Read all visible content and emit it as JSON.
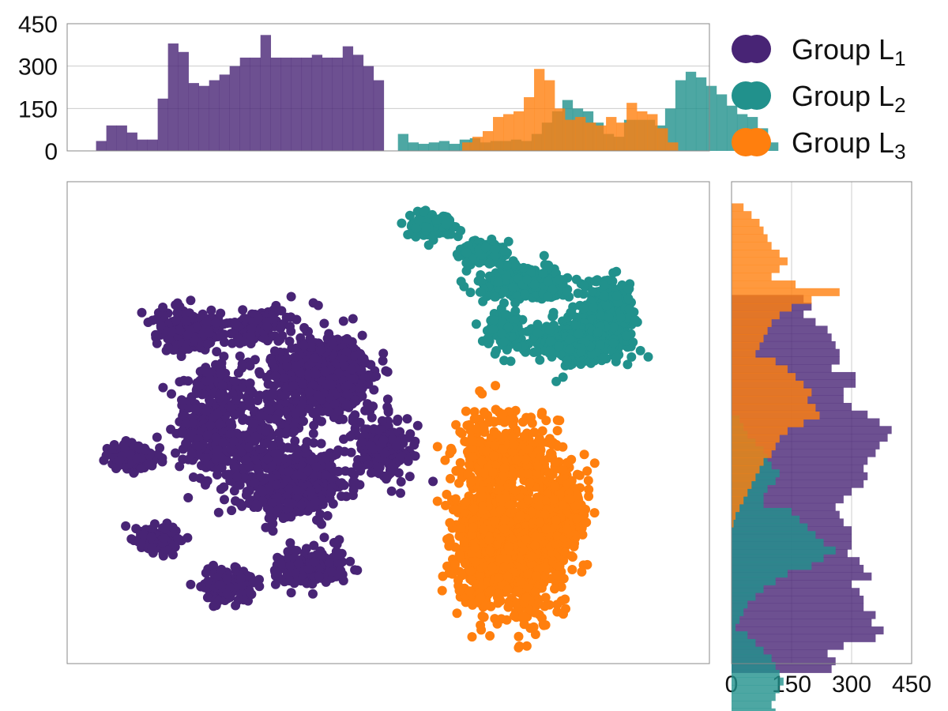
{
  "chart_data": {
    "type": "scatter",
    "title": "",
    "xlabel": "",
    "ylabel": "",
    "legend": {
      "placement": "top-right",
      "entries": [
        {
          "prefix": "Group L",
          "subscript": "1"
        },
        {
          "prefix": "Group L",
          "subscript": "2"
        },
        {
          "prefix": "Group L",
          "subscript": "3"
        }
      ]
    },
    "colors": {
      "group1": "#482475",
      "group2": "#21918c",
      "group3": "#ff7f0e",
      "grid": "#cccccc",
      "frame": "#888888"
    },
    "scatter": {
      "xlim": [
        0,
        100
      ],
      "ylim": [
        0,
        100
      ],
      "clusters": [
        {
          "group": 0,
          "cx": 40,
          "cy": 40,
          "rx": 6,
          "ry": 7,
          "n": 700
        },
        {
          "group": 0,
          "cx": 36,
          "cy": 63,
          "rx": 7,
          "ry": 6,
          "n": 400
        },
        {
          "group": 0,
          "cx": 22,
          "cy": 52,
          "rx": 4,
          "ry": 8,
          "n": 220
        },
        {
          "group": 0,
          "cx": 10,
          "cy": 57,
          "rx": 3.5,
          "ry": 2.5,
          "n": 150
        },
        {
          "group": 0,
          "cx": 14,
          "cy": 74,
          "rx": 3,
          "ry": 2.5,
          "n": 120
        },
        {
          "group": 0,
          "cx": 25,
          "cy": 84,
          "rx": 3.5,
          "ry": 3,
          "n": 140
        },
        {
          "group": 0,
          "cx": 38,
          "cy": 80,
          "rx": 5,
          "ry": 3.5,
          "n": 200
        },
        {
          "group": 0,
          "cx": 19,
          "cy": 31,
          "rx": 5,
          "ry": 4,
          "n": 220
        },
        {
          "group": 0,
          "cx": 30,
          "cy": 30,
          "rx": 4,
          "ry": 3,
          "n": 120
        },
        {
          "group": 0,
          "cx": 49,
          "cy": 55,
          "rx": 4,
          "ry": 6,
          "n": 200
        },
        {
          "group": 0,
          "cx": 23,
          "cy": 42,
          "rx": 3,
          "ry": 3,
          "n": 100
        },
        {
          "group": 0,
          "cx": 30,
          "cy": 52,
          "rx": 10,
          "ry": 14,
          "n": 350
        },
        {
          "group": 2,
          "cx": 65,
          "cy": 73,
          "rx": 4,
          "ry": 13,
          "n": 700
        },
        {
          "group": 2,
          "cx": 72,
          "cy": 77,
          "rx": 5,
          "ry": 13,
          "n": 500
        },
        {
          "group": 2,
          "cx": 77,
          "cy": 68,
          "rx": 4,
          "ry": 7,
          "n": 250
        },
        {
          "group": 2,
          "cx": 69,
          "cy": 57,
          "rx": 7,
          "ry": 5,
          "n": 300
        },
        {
          "group": 2,
          "cx": 67,
          "cy": 50,
          "rx": 6,
          "ry": 5,
          "n": 40
        },
        {
          "group": 1,
          "cx": 84,
          "cy": 28,
          "rx": 3.5,
          "ry": 7,
          "n": 450
        },
        {
          "group": 1,
          "cx": 78,
          "cy": 33,
          "rx": 6,
          "ry": 3,
          "n": 350
        },
        {
          "group": 1,
          "cx": 71,
          "cy": 21,
          "rx": 6,
          "ry": 3,
          "n": 300
        },
        {
          "group": 1,
          "cx": 65,
          "cy": 15,
          "rx": 3.5,
          "ry": 2.5,
          "n": 150
        },
        {
          "group": 1,
          "cx": 57,
          "cy": 9,
          "rx": 3,
          "ry": 2,
          "n": 200
        },
        {
          "group": 1,
          "cx": 68,
          "cy": 30,
          "rx": 3,
          "ry": 5,
          "n": 80
        },
        {
          "group": 1,
          "cx": 80,
          "cy": 35,
          "rx": 6,
          "ry": 3.5,
          "n": 80
        }
      ]
    },
    "top_hist": {
      "ylim": [
        0,
        450
      ],
      "yticks": [
        "0",
        "150",
        "300",
        "450"
      ],
      "bin_width": 1.6,
      "series": [
        {
          "group": 0,
          "start": 4.5,
          "values": [
            35,
            90,
            90,
            65,
            40,
            40,
            185,
            380,
            350,
            240,
            230,
            250,
            270,
            300,
            330,
            330,
            410,
            330,
            330,
            330,
            330,
            340,
            330,
            330,
            370,
            340,
            300,
            250
          ]
        },
        {
          "group": 1,
          "start": 51.5,
          "values": [
            60,
            30,
            25,
            30,
            35,
            25,
            40,
            45,
            30,
            35,
            35,
            40,
            35,
            60,
            100,
            140,
            180,
            150,
            140,
            100,
            60,
            50,
            110,
            110,
            110,
            90,
            150,
            250,
            280,
            260,
            230,
            200,
            160,
            130,
            120,
            80,
            30
          ]
        },
        {
          "group": 2,
          "start": 61.5,
          "values": [
            30,
            50,
            70,
            120,
            130,
            140,
            190,
            290,
            250,
            150,
            110,
            120,
            100,
            90,
            120,
            100,
            170,
            140,
            130,
            80,
            30
          ]
        }
      ]
    },
    "right_hist": {
      "xlim": [
        0,
        450
      ],
      "xticks": [
        "0",
        "150",
        "300",
        "450"
      ],
      "bin_width": 1.6,
      "series": [
        {
          "group": 0,
          "start": 23.5,
          "values": [
            180,
            200,
            180,
            210,
            240,
            250,
            260,
            270,
            270,
            250,
            310,
            310,
            280,
            280,
            300,
            340,
            370,
            400,
            390,
            370,
            360,
            340,
            330,
            340,
            330,
            300,
            280,
            260,
            270,
            280,
            300,
            300,
            300,
            290,
            320,
            330,
            350,
            300,
            320,
            330,
            330,
            360,
            350,
            380,
            360,
            280,
            240,
            260,
            250
          ]
        },
        {
          "group": 1,
          "start": 48.5,
          "values": [
            20,
            30,
            40,
            60,
            80,
            90,
            100,
            120,
            110,
            90,
            80,
            80,
            150,
            170,
            190,
            210,
            230,
            260,
            230,
            200,
            140,
            110,
            80,
            60,
            40,
            30,
            20,
            10,
            40,
            60,
            80,
            100,
            110,
            120,
            130,
            120,
            110,
            100,
            110,
            90
          ]
        },
        {
          "group": 2,
          "start": 4.5,
          "values": [
            30,
            50,
            70,
            80,
            90,
            100,
            120,
            140,
            120,
            100,
            160,
            270,
            200,
            150,
            120,
            100,
            90,
            80,
            70,
            60,
            110,
            140,
            160,
            180,
            200,
            190,
            210,
            220,
            180,
            140,
            120,
            110,
            100,
            80,
            70,
            60,
            50,
            40,
            30,
            20,
            10,
            5
          ]
        }
      ]
    }
  }
}
